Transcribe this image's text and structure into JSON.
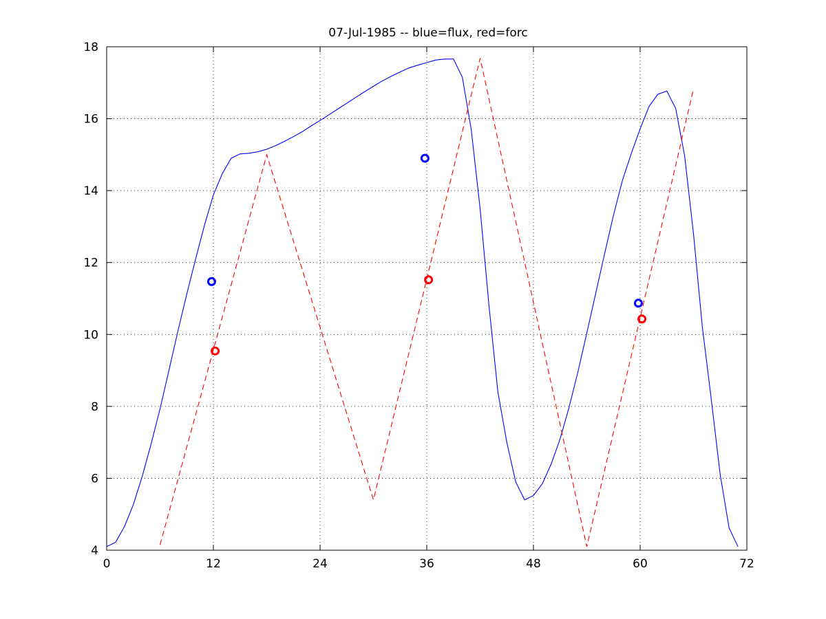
{
  "chart_data": {
    "type": "line",
    "title": "07-Jul-1985 -- blue=flux, red=forc",
    "xlabel": "",
    "ylabel": "",
    "xlim": [
      0,
      72
    ],
    "ylim": [
      4,
      18
    ],
    "xticks": [
      0,
      12,
      24,
      36,
      48,
      60,
      72
    ],
    "yticks": [
      4,
      6,
      8,
      10,
      12,
      14,
      16,
      18
    ],
    "grid": true,
    "series": [
      {
        "color": "#0000ff",
        "style": "solid",
        "x": [
          0,
          1,
          2,
          3,
          4,
          5,
          6,
          7,
          8,
          9,
          10,
          11,
          12,
          13,
          14,
          15,
          16,
          17,
          18,
          19,
          20,
          21,
          22,
          23,
          24,
          25,
          26,
          27,
          28,
          29,
          30,
          31,
          32,
          33,
          34,
          35,
          36,
          37,
          38,
          39,
          40,
          41,
          42,
          43,
          44,
          45,
          46,
          47,
          48,
          49,
          50,
          51,
          52,
          53,
          54,
          55,
          56,
          57,
          58,
          59,
          60,
          61,
          62,
          63,
          64,
          65,
          66,
          67,
          68,
          69,
          70,
          71
        ],
        "y": [
          4.1,
          4.22,
          4.66,
          5.27,
          6.06,
          6.96,
          7.93,
          9.0,
          10.08,
          11.12,
          12.1,
          13.04,
          13.88,
          14.47,
          14.9,
          15.02,
          15.04,
          15.08,
          15.15,
          15.25,
          15.37,
          15.5,
          15.64,
          15.8,
          15.95,
          16.11,
          16.27,
          16.43,
          16.59,
          16.75,
          16.9,
          17.05,
          17.18,
          17.3,
          17.41,
          17.49,
          17.56,
          17.63,
          17.66,
          17.66,
          17.15,
          15.7,
          13.5,
          10.8,
          8.4,
          7.0,
          5.9,
          5.4,
          5.52,
          5.85,
          6.4,
          7.1,
          7.97,
          8.96,
          10.04,
          11.14,
          12.24,
          13.32,
          14.28,
          15.03,
          15.72,
          16.34,
          16.68,
          16.77,
          16.28,
          14.97,
          12.8,
          10.2,
          8.2,
          6.1,
          4.62,
          4.1
        ]
      },
      {
        "color": "#ff0000",
        "style": "dashed",
        "x": [
          6,
          18,
          30,
          42,
          54,
          66
        ],
        "y": [
          4.15,
          15.0,
          5.4,
          17.68,
          4.1,
          16.83
        ]
      }
    ],
    "markers": [
      {
        "color": "#0000ff",
        "x": [
          11.8,
          35.8,
          59.8
        ],
        "y": [
          11.47,
          14.9,
          10.87
        ]
      },
      {
        "color": "#ff0000",
        "x": [
          12.2,
          36.2,
          60.2
        ],
        "y": [
          9.54,
          11.52,
          10.43
        ]
      }
    ]
  }
}
